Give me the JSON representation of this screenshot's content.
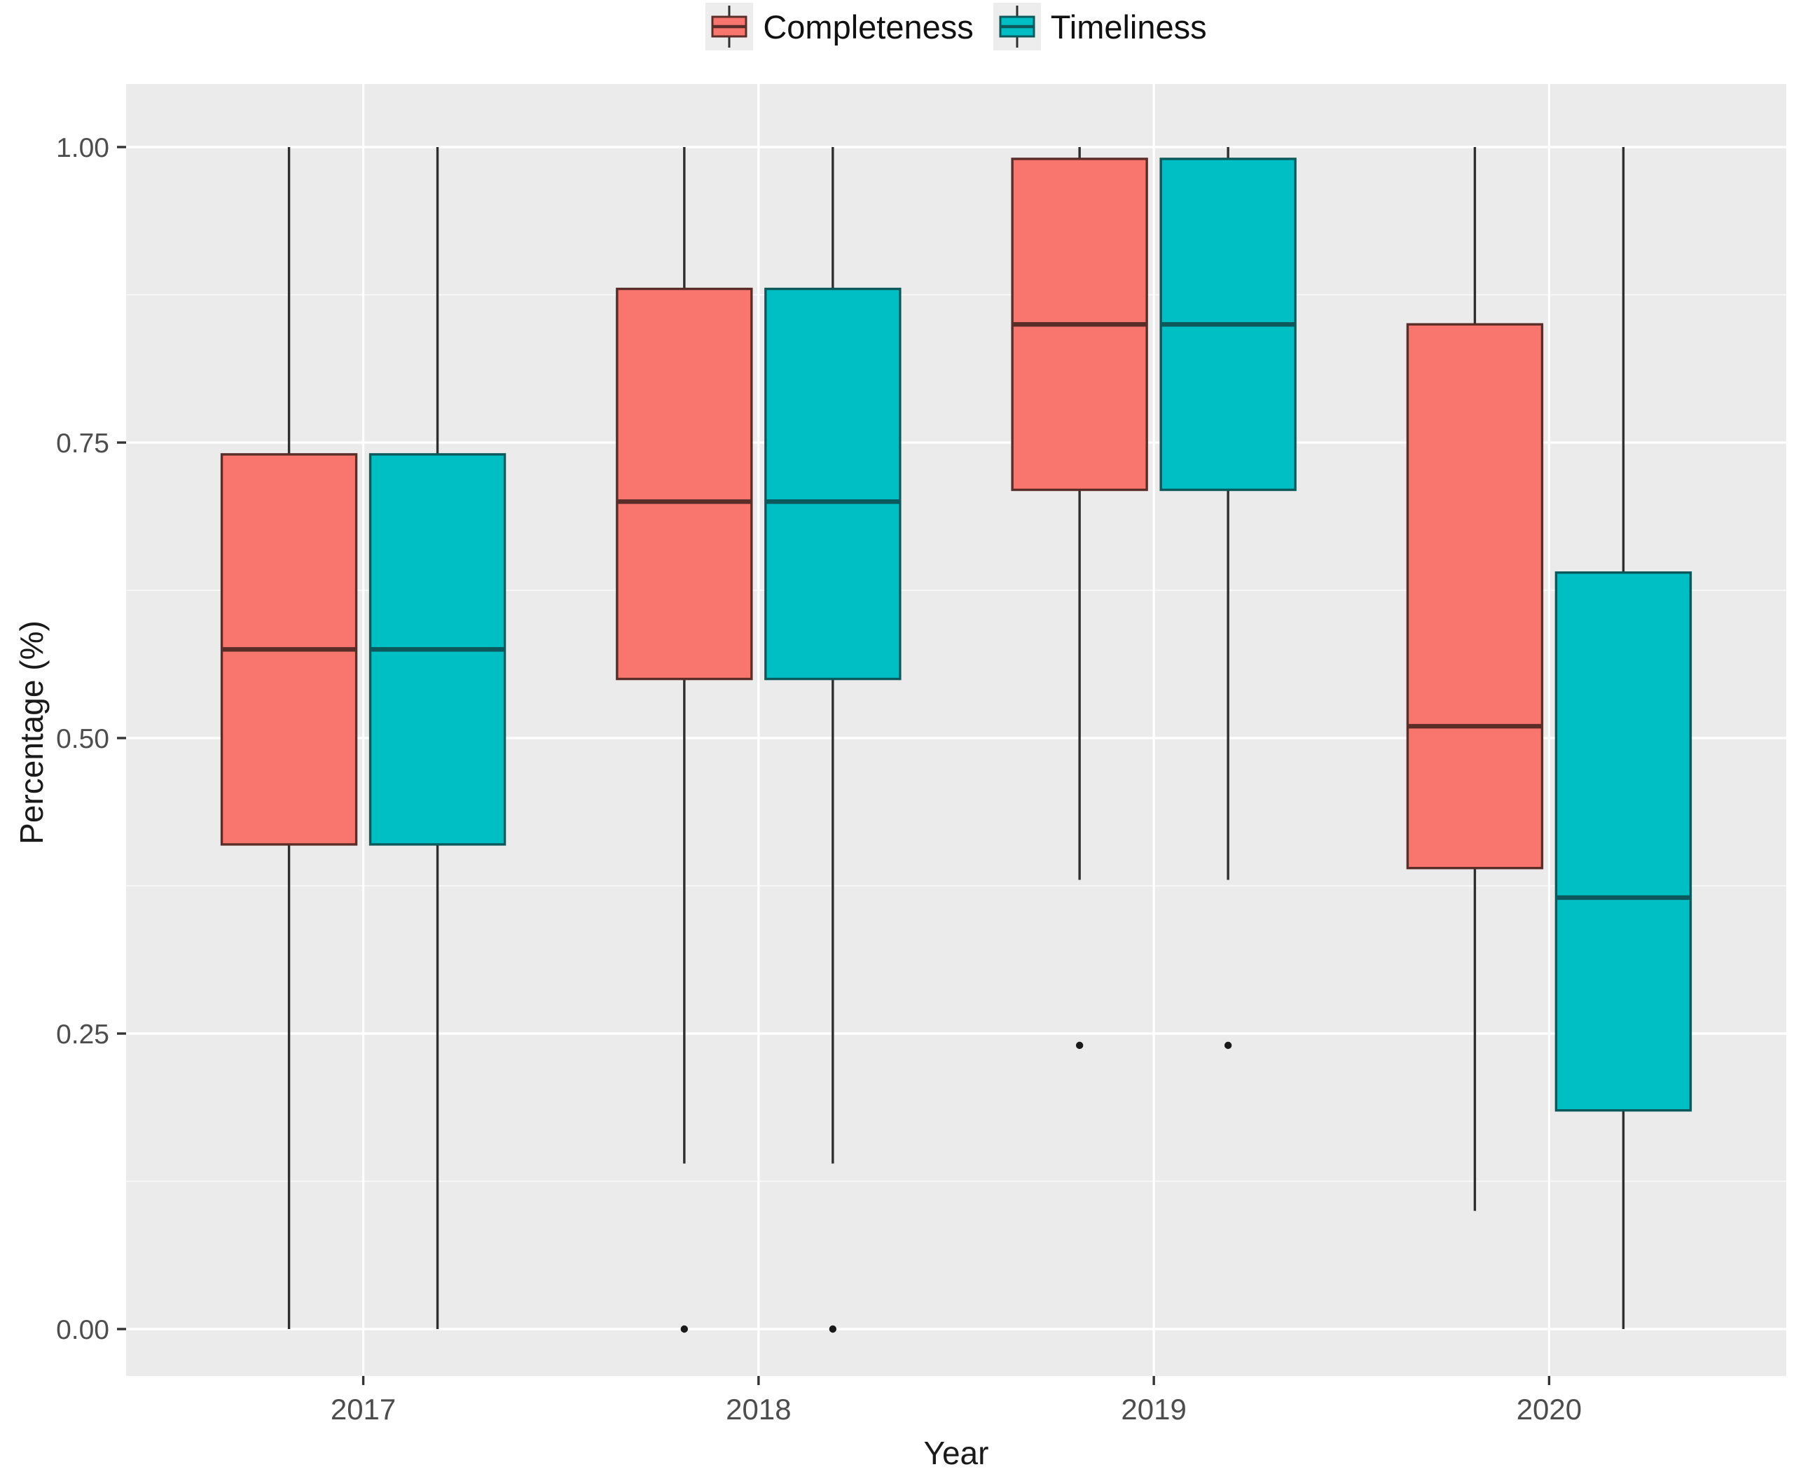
{
  "legend": {
    "items": [
      {
        "label": "Completeness",
        "fill": "#F8766D",
        "stroke": "#5B2D29"
      },
      {
        "label": "Timeliness",
        "fill": "#00BFC4",
        "stroke": "#0D585B"
      }
    ]
  },
  "axes": {
    "x_title": "Year",
    "y_title": "Percentage (%)",
    "y_tick_labels": [
      "1.00",
      "0.75",
      "0.50",
      "0.25",
      "0.00"
    ],
    "y_tick_values": [
      1.0,
      0.75,
      0.5,
      0.25,
      0.0
    ],
    "x_tick_labels": [
      "2017",
      "2018",
      "2019",
      "2020"
    ]
  },
  "chart_data": {
    "type": "boxplot",
    "title": "",
    "xlabel": "Year",
    "ylabel": "Percentage (%)",
    "ylim": [
      0,
      1
    ],
    "grid": true,
    "legend_position": "top",
    "categories": [
      "2017",
      "2018",
      "2019",
      "2020"
    ],
    "series": [
      {
        "name": "Completeness",
        "fill": "#F8766D",
        "stroke": "#5B2D29",
        "boxes": [
          {
            "category": "2017",
            "min": 0.0,
            "q1": 0.41,
            "median": 0.575,
            "q3": 0.74,
            "max": 1.0,
            "outliers": []
          },
          {
            "category": "2018",
            "min": 0.14,
            "q1": 0.55,
            "median": 0.7,
            "q3": 0.88,
            "max": 1.0,
            "outliers": [
              0.0
            ]
          },
          {
            "category": "2019",
            "min": 0.38,
            "q1": 0.71,
            "median": 0.85,
            "q3": 0.99,
            "max": 1.0,
            "outliers": [
              0.24
            ]
          },
          {
            "category": "2020",
            "min": 0.1,
            "q1": 0.39,
            "median": 0.51,
            "q3": 0.85,
            "max": 1.0,
            "outliers": []
          }
        ]
      },
      {
        "name": "Timeliness",
        "fill": "#00BFC4",
        "stroke": "#0D585B",
        "boxes": [
          {
            "category": "2017",
            "min": 0.0,
            "q1": 0.41,
            "median": 0.575,
            "q3": 0.74,
            "max": 1.0,
            "outliers": []
          },
          {
            "category": "2018",
            "min": 0.14,
            "q1": 0.55,
            "median": 0.7,
            "q3": 0.88,
            "max": 1.0,
            "outliers": [
              0.0
            ]
          },
          {
            "category": "2019",
            "min": 0.38,
            "q1": 0.71,
            "median": 0.85,
            "q3": 0.99,
            "max": 1.0,
            "outliers": [
              0.24
            ]
          },
          {
            "category": "2020",
            "min": 0.0,
            "q1": 0.185,
            "median": 0.365,
            "q3": 0.64,
            "max": 1.0,
            "outliers": []
          }
        ]
      }
    ]
  },
  "colors": {
    "background": "#FFFFFF",
    "panel": "#EBEBEB",
    "grid_major": "#FFFFFF",
    "grid_minor": "#FFFFFF",
    "whisker": "#2E2E2E",
    "outlier": "#1A1A1A",
    "tick_mark": "#333333",
    "tick_text": "#4D4D4D",
    "axis_title": "#1A1A1A",
    "legend_key_bg": "#EDEDED"
  }
}
